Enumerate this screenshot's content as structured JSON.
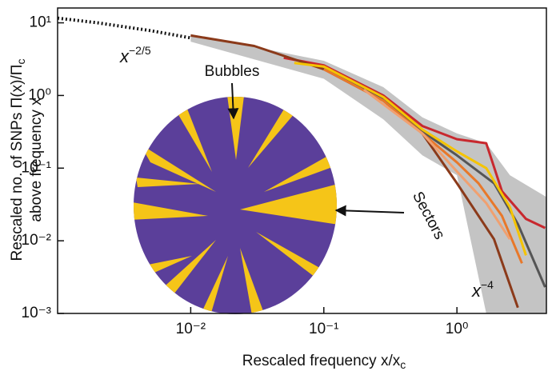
{
  "chart_data": {
    "type": "line",
    "y_label": {
      "line1": "Rescaled no. of SNPs Π(x)/Π",
      "line1_sub": "c",
      "line2": "above frequency x"
    },
    "x_label": {
      "text": "Rescaled frequency x/x",
      "sub": "c"
    },
    "log_x": true,
    "log_y": true,
    "xlim": [
      0.001,
      4.7
    ],
    "ylim": [
      0.001,
      16
    ],
    "xticks": [
      {
        "value": 0.01,
        "label": "10⁻²"
      },
      {
        "value": 0.1,
        "label": "10⁻¹"
      },
      {
        "value": 1,
        "label": "10⁰"
      }
    ],
    "yticks": [
      {
        "value": 0.001,
        "label": "10⁻³"
      },
      {
        "value": 0.01,
        "label": "10⁻²"
      },
      {
        "value": 0.1,
        "label": "10⁻¹"
      },
      {
        "value": 1,
        "label": "10⁰"
      },
      {
        "value": 10,
        "label": "10¹"
      }
    ],
    "band": {
      "color": "#c4c4c4",
      "x": [
        0.01,
        0.1,
        0.28,
        0.55,
        1,
        1.66,
        2.5,
        4.7
      ],
      "upper": [
        7,
        3.0,
        1.3,
        0.5,
        0.3,
        0.22,
        0.08,
        0.04
      ],
      "lower": [
        5.5,
        1.7,
        0.47,
        0.15,
        0.08,
        0.001,
        0.001,
        0.001
      ]
    },
    "reference_line": {
      "color": "#111111",
      "x": [
        0.001,
        0.002,
        0.005,
        0.01
      ],
      "values": [
        11.6,
        10,
        7.8,
        6.2
      ]
    },
    "series": [
      {
        "color": "#c8282e",
        "x": [
          0.05,
          0.1,
          0.28,
          0.55,
          1,
          1.66,
          2.18,
          3.3,
          4.6
        ],
        "values": [
          3.3,
          2.6,
          1.0,
          0.38,
          0.25,
          0.22,
          0.048,
          0.02,
          0.015
        ]
      },
      {
        "color": "#8b3a1a",
        "x": [
          0.01,
          0.03,
          0.1,
          0.28,
          0.55,
          1,
          1.9,
          2.87
        ],
        "values": [
          6.7,
          4.8,
          2.3,
          0.85,
          0.3,
          0.062,
          0.0105,
          0.0012
        ]
      },
      {
        "color": "#555555",
        "x": [
          0.1,
          0.28,
          0.55,
          1,
          1.9,
          2.87,
          4.6
        ],
        "values": [
          2.4,
          0.88,
          0.32,
          0.15,
          0.062,
          0.017,
          0.0023
        ]
      },
      {
        "color": "#f5c400",
        "x": [
          0.06,
          0.1,
          0.28,
          0.55,
          1,
          1.66,
          2.5,
          3.3
        ],
        "values": [
          2.8,
          2.5,
          0.95,
          0.34,
          0.17,
          0.1,
          0.029,
          0.0063
        ]
      },
      {
        "color": "#e8782a",
        "x": [
          0.1,
          0.28,
          0.55,
          1,
          1.45,
          2.18,
          3.08
        ],
        "values": [
          2.3,
          0.85,
          0.3,
          0.12,
          0.062,
          0.022,
          0.0049
        ]
      },
      {
        "color": "#f0a070",
        "x": [
          0.2,
          0.55,
          1,
          1.66,
          2.5
        ],
        "values": [
          1.2,
          0.3,
          0.09,
          0.033,
          0.0105
        ]
      }
    ],
    "annotations": [
      {
        "text": "x",
        "sup": "−2/5"
      },
      {
        "text": "x",
        "sup": "−4"
      },
      {
        "text": "Bubbles"
      },
      {
        "text": "Sectors"
      }
    ]
  }
}
